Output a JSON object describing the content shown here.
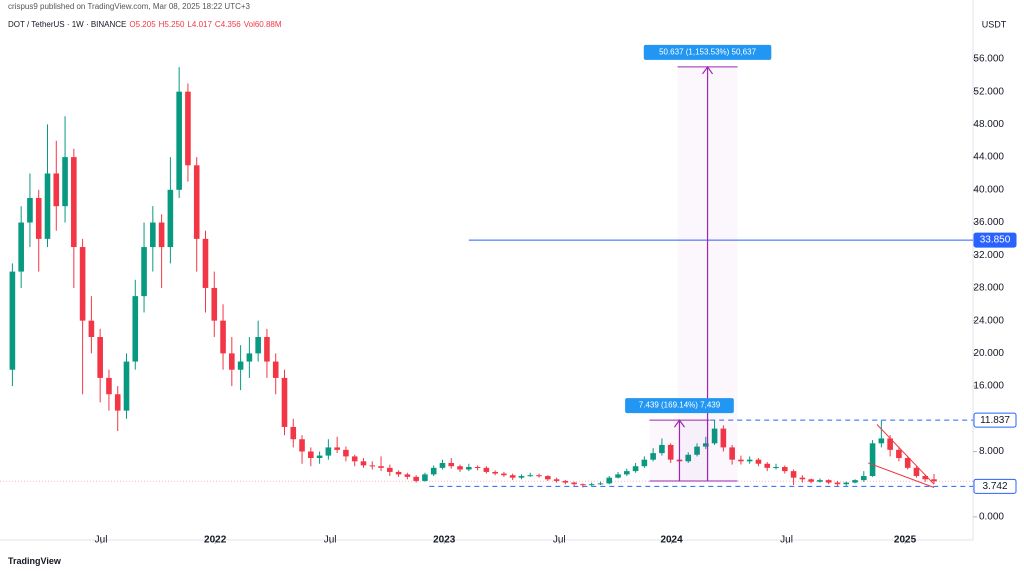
{
  "chart_data": {
    "type": "candlestick",
    "publisher_note": "crispus9 published on TradingView.com, Mar 08, 2025 18:22 UTC+3",
    "title": "DOT / TetherUS · 1W · BINANCE",
    "ohlc_legend": [
      {
        "value": 5.205,
        "label": "O5.205"
      },
      {
        "value": 5.25,
        "label": "H5.250"
      },
      {
        "value": 4.017,
        "label": "L4.017"
      },
      {
        "value": 4.356,
        "label": "C4.356"
      },
      {
        "value": 60880000,
        "label": "Vol60.88M"
      }
    ],
    "y_axis_label": "USDT",
    "footer": "TradingView",
    "up_color": "#089981",
    "down_color": "#f23645",
    "open": [
      18,
      30,
      36,
      39,
      34,
      42,
      38,
      44,
      33,
      24,
      22,
      17,
      15,
      13,
      19,
      27,
      33,
      36,
      33,
      40,
      52,
      43,
      34,
      28,
      24,
      20,
      18,
      19,
      20,
      22,
      19,
      17,
      11,
      9.5,
      8,
      7.2,
      7.5,
      8.5,
      8.2,
      7.4,
      6.8,
      6.3,
      6.2,
      6,
      5.5,
      5.2,
      4.9,
      4.4,
      5.2,
      6,
      6.6,
      6.2,
      5.8,
      6.1,
      6,
      5.5,
      5.3,
      5.1,
      4.8,
      5,
      5.1,
      5,
      4.6,
      4.4,
      4.2,
      4,
      3.9,
      4,
      4.1,
      4.8,
      5.2,
      5.6,
      6.2,
      7,
      7.8,
      8.8,
      7,
      6.8,
      7.6,
      8.6,
      9,
      10.8,
      8.5,
      7,
      6.8,
      7,
      6.5,
      6,
      6.1,
      5.6,
      4.8,
      4.6,
      4.3,
      4.5,
      4.2,
      4,
      4.2,
      4.5,
      5,
      9,
      9.6,
      8.2,
      7.2,
      6,
      5,
      4.6
    ],
    "high": [
      31,
      38,
      42,
      40,
      48,
      46,
      49,
      45,
      34,
      27,
      23,
      18,
      16,
      20,
      29,
      36,
      38,
      37,
      44,
      55,
      53,
      44,
      35,
      30,
      26,
      22,
      21,
      22,
      24,
      23,
      20,
      18,
      12,
      10,
      8.5,
      8,
      9.5,
      9.8,
      8.6,
      7.6,
      7.2,
      6.8,
      7.4,
      6.4,
      5.7,
      5.4,
      5.1,
      5.4,
      6.3,
      7,
      7.2,
      6.4,
      6.5,
      6.3,
      6.2,
      5.7,
      5.5,
      5.3,
      5.2,
      5.4,
      5.3,
      5.1,
      4.8,
      4.5,
      4.3,
      4.1,
      4.2,
      4.3,
      5,
      5.5,
      5.9,
      6.6,
      7.4,
      8.4,
      9.6,
      9,
      7.4,
      7.9,
      9,
      9.8,
      11.84,
      11.2,
      8.8,
      7.5,
      7.4,
      7.2,
      6.7,
      6.5,
      6.3,
      5.8,
      5.1,
      4.7,
      4.7,
      4.6,
      4.4,
      4.3,
      4.6,
      5.6,
      9.4,
      11.8,
      10,
      8.6,
      7.4,
      6.2,
      5.2,
      5.25
    ],
    "low": [
      16,
      28,
      33,
      30,
      33,
      35,
      36,
      28,
      15,
      20,
      14,
      13,
      10.5,
      12,
      18,
      25,
      30,
      28,
      31,
      39,
      41,
      30,
      25,
      22,
      18,
      16,
      15.5,
      17,
      19,
      17,
      15,
      10,
      8.5,
      6.5,
      6.2,
      6.5,
      7,
      7.8,
      6.8,
      6.2,
      6,
      5.8,
      5.6,
      5,
      4.9,
      4.6,
      4.2,
      4.3,
      5,
      5.8,
      5.9,
      5.5,
      5.6,
      5.7,
      5.3,
      5.1,
      4.9,
      4.5,
      4.6,
      4.9,
      4.8,
      4.4,
      4.2,
      4,
      3.8,
      3.6,
      3.7,
      3.9,
      4,
      4.7,
      5,
      5.4,
      6,
      6.8,
      7.5,
      6.6,
      6.3,
      6.6,
      7.4,
      8.3,
      8.8,
      8,
      6.4,
      6.4,
      6.5,
      6.2,
      5.6,
      5.8,
      5.3,
      3.9,
      4.2,
      4.1,
      4.2,
      4,
      3.8,
      3.8,
      4.1,
      4.3,
      4.9,
      8.5,
      7.4,
      6.8,
      5.8,
      4.8,
      4.3,
      4.017
    ],
    "close": [
      30,
      36,
      39,
      34,
      42,
      38,
      44,
      33,
      24,
      22,
      17,
      15,
      13,
      19,
      27,
      33,
      36,
      33,
      40,
      52,
      43,
      34,
      28,
      24,
      20,
      18,
      19,
      20,
      22,
      19,
      17,
      11,
      9.5,
      8,
      7.2,
      7.5,
      8.5,
      8.2,
      7.4,
      6.8,
      6.3,
      6.2,
      6,
      5.5,
      5.2,
      4.9,
      4.4,
      5.2,
      6,
      6.6,
      6.2,
      5.8,
      6.1,
      6,
      5.5,
      5.3,
      5.1,
      4.8,
      5,
      5.1,
      5,
      4.6,
      4.4,
      4.2,
      4,
      3.9,
      4,
      4.1,
      4.8,
      5.2,
      5.6,
      6.2,
      7,
      7.8,
      8.8,
      7,
      6.8,
      7.6,
      8.6,
      9,
      10.8,
      8.5,
      7,
      6.8,
      7,
      6.5,
      6,
      6.1,
      5.6,
      4.8,
      4.6,
      4.3,
      4.5,
      4.2,
      4,
      4.2,
      4.5,
      5,
      9,
      9.6,
      8.2,
      7.2,
      6,
      5,
      4.6,
      4.356
    ],
    "xlim": [
      0,
      109.6
    ],
    "xticks": [
      {
        "value": 10.6,
        "label": "Jul"
      },
      {
        "value": 23.6,
        "label": "2022"
      },
      {
        "value": 36.7,
        "label": "Jul"
      },
      {
        "value": 49.7,
        "label": "2023"
      },
      {
        "value": 62.8,
        "label": "Jul"
      },
      {
        "value": 75.6,
        "label": "2024"
      },
      {
        "value": 88.7,
        "label": "Jul"
      },
      {
        "value": 102.2,
        "label": "2025"
      }
    ],
    "ylim": [
      -1.6,
      61.5
    ],
    "yticks": [
      {
        "value": 0,
        "label": "0.000"
      },
      {
        "value": 8,
        "label": "8.000"
      },
      {
        "value": 16,
        "label": "16.000"
      },
      {
        "value": 20,
        "label": "20.000"
      },
      {
        "value": 24,
        "label": "24.000"
      },
      {
        "value": 28,
        "label": "28.000"
      },
      {
        "value": 32,
        "label": "32.000"
      },
      {
        "value": 36,
        "label": "36.000"
      },
      {
        "value": 40,
        "label": "40.000"
      },
      {
        "value": 44,
        "label": "44.000"
      },
      {
        "value": 48,
        "label": "48.000"
      },
      {
        "value": 52,
        "label": "52.000"
      },
      {
        "value": 56,
        "label": "56.000"
      }
    ],
    "price_levels": [
      {
        "value": 33.85,
        "label": "33.850",
        "from_x": 52.5,
        "dashed": false,
        "filled": true
      },
      {
        "value": 11.837,
        "label": "11.837",
        "from_x": 80,
        "dashed": true,
        "filled": false
      },
      {
        "value": 3.742,
        "label": "3.742",
        "from_x": 48,
        "dashed": true,
        "filled": false
      }
    ],
    "measurements": [
      {
        "x": 79.7,
        "from": 4.39,
        "to": 55.027,
        "label": "50.637 (1,153.53%) 50,637"
      },
      {
        "x": 76.5,
        "from": 4.398,
        "to": 11.837,
        "label": "7.439 (169.14%) 7,439"
      }
    ],
    "trendlines": [
      {
        "x": [
          99,
          105.5
        ],
        "y": [
          11.3,
          4.0
        ]
      },
      {
        "x": [
          98,
          105.5
        ],
        "y": [
          6.6,
          3.6
        ]
      }
    ]
  }
}
